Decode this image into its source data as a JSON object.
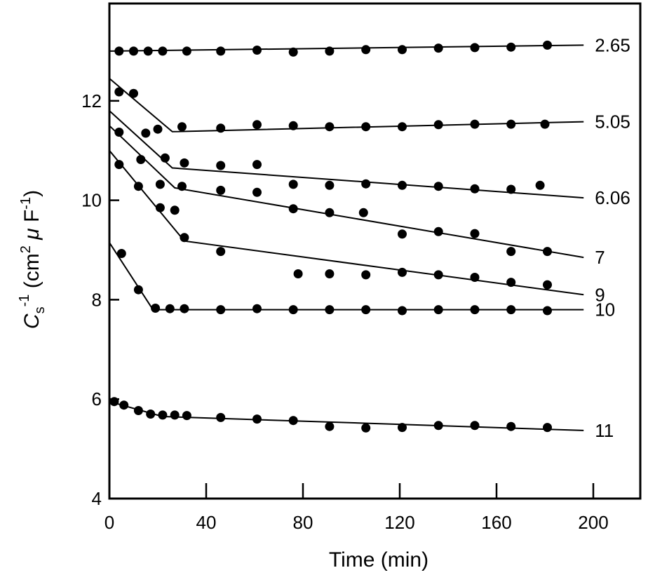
{
  "chart_data": {
    "type": "scatter",
    "title": "",
    "xlabel": "Time (min)",
    "ylabel": {
      "main": "C",
      "sub": "s",
      "sup": "-1",
      "units_open": " (cm",
      "units_sup2": "2",
      "units_mu": " μ",
      "units_F": " F",
      "units_sup3": "-1",
      "units_close": ")"
    },
    "xlim": [
      0,
      205
    ],
    "ylim": [
      4,
      14
    ],
    "xticks": [
      0,
      40,
      80,
      120,
      160,
      200
    ],
    "xtick_labels": [
      "0",
      "40",
      "80",
      "120",
      "160",
      "200"
    ],
    "yticks": [
      4,
      6,
      8,
      10,
      12
    ],
    "ytick_labels": [
      "4",
      "6",
      "8",
      "10",
      "12"
    ],
    "grid": false,
    "legend": "none",
    "series": [
      {
        "name": "2.65",
        "points": [
          [
            4,
            13.0
          ],
          [
            10,
            13.0
          ],
          [
            16,
            13.0
          ],
          [
            22,
            13.0
          ],
          [
            32,
            13.0
          ],
          [
            46,
            13.0
          ],
          [
            61,
            13.02
          ],
          [
            76,
            12.98
          ],
          [
            91,
            13.0
          ],
          [
            106,
            13.03
          ],
          [
            121,
            13.03
          ],
          [
            136,
            13.06
          ],
          [
            151,
            13.07
          ],
          [
            166,
            13.08
          ],
          [
            181,
            13.12
          ]
        ],
        "fit": [
          [
            0,
            13.0
          ],
          [
            196,
            13.12
          ]
        ]
      },
      {
        "name": "5.05",
        "points": [
          [
            4,
            12.18
          ],
          [
            10,
            12.15
          ],
          [
            15,
            11.35
          ],
          [
            20,
            11.43
          ],
          [
            30,
            11.48
          ],
          [
            46,
            11.45
          ],
          [
            61,
            11.52
          ],
          [
            76,
            11.5
          ],
          [
            91,
            11.48
          ],
          [
            106,
            11.48
          ],
          [
            121,
            11.48
          ],
          [
            136,
            11.52
          ],
          [
            151,
            11.53
          ],
          [
            166,
            11.53
          ],
          [
            180,
            11.53
          ]
        ],
        "fit": [
          [
            0,
            12.45
          ],
          [
            26,
            11.38
          ],
          [
            196,
            11.58
          ]
        ]
      },
      {
        "name": "6.06",
        "points": [
          [
            4,
            11.37
          ],
          [
            13,
            10.82
          ],
          [
            23,
            10.85
          ],
          [
            31,
            10.75
          ],
          [
            46,
            10.7
          ],
          [
            61,
            10.72
          ],
          [
            76,
            10.32
          ],
          [
            91,
            10.3
          ],
          [
            106,
            10.33
          ],
          [
            121,
            10.3
          ],
          [
            136,
            10.28
          ],
          [
            151,
            10.23
          ],
          [
            166,
            10.22
          ],
          [
            178,
            10.3
          ]
        ],
        "fit": [
          [
            0,
            11.8
          ],
          [
            26,
            10.65
          ],
          [
            196,
            10.05
          ]
        ]
      },
      {
        "name": "7",
        "points": [
          [
            4,
            10.72
          ],
          [
            12,
            10.28
          ],
          [
            21,
            10.32
          ],
          [
            21,
            9.85
          ],
          [
            27,
            9.8
          ],
          [
            30,
            10.28
          ],
          [
            46,
            10.2
          ],
          [
            61,
            10.16
          ],
          [
            76,
            9.83
          ],
          [
            91,
            9.75
          ],
          [
            105,
            9.75
          ],
          [
            121,
            9.32
          ],
          [
            136,
            9.37
          ],
          [
            151,
            9.33
          ],
          [
            166,
            8.97
          ],
          [
            181,
            8.97
          ]
        ],
        "fit": [
          [
            0,
            11.5
          ],
          [
            27,
            10.25
          ],
          [
            196,
            8.85
          ]
        ]
      },
      {
        "name": "9",
        "points": [
          [
            5,
            8.93
          ],
          [
            31,
            9.25
          ],
          [
            46,
            8.97
          ],
          [
            78,
            8.52
          ],
          [
            91,
            8.52
          ],
          [
            106,
            8.5
          ],
          [
            121,
            8.55
          ],
          [
            136,
            8.5
          ],
          [
            151,
            8.45
          ],
          [
            166,
            8.35
          ],
          [
            181,
            8.3
          ]
        ],
        "fit": [
          [
            0,
            11.0
          ],
          [
            31,
            9.18
          ],
          [
            196,
            8.1
          ]
        ]
      },
      {
        "name": "10",
        "points": [
          [
            12,
            8.2
          ],
          [
            19,
            7.83
          ],
          [
            25,
            7.82
          ],
          [
            31,
            7.82
          ],
          [
            46,
            7.8
          ],
          [
            61,
            7.82
          ],
          [
            76,
            7.8
          ],
          [
            91,
            7.8
          ],
          [
            106,
            7.8
          ],
          [
            121,
            7.78
          ],
          [
            136,
            7.8
          ],
          [
            151,
            7.8
          ],
          [
            166,
            7.8
          ],
          [
            181,
            7.78
          ]
        ],
        "fit": [
          [
            0,
            9.15
          ],
          [
            18,
            7.8
          ],
          [
            196,
            7.8
          ]
        ]
      },
      {
        "name": "11",
        "points": [
          [
            2,
            5.95
          ],
          [
            6,
            5.88
          ],
          [
            12,
            5.77
          ],
          [
            17,
            5.7
          ],
          [
            22,
            5.68
          ],
          [
            27,
            5.68
          ],
          [
            32,
            5.67
          ],
          [
            46,
            5.63
          ],
          [
            61,
            5.6
          ],
          [
            76,
            5.57
          ],
          [
            91,
            5.45
          ],
          [
            106,
            5.42
          ],
          [
            121,
            5.43
          ],
          [
            136,
            5.47
          ],
          [
            151,
            5.47
          ],
          [
            166,
            5.45
          ],
          [
            181,
            5.43
          ]
        ],
        "fit": [
          [
            0,
            5.95
          ],
          [
            22,
            5.65
          ],
          [
            196,
            5.37
          ]
        ]
      }
    ]
  }
}
